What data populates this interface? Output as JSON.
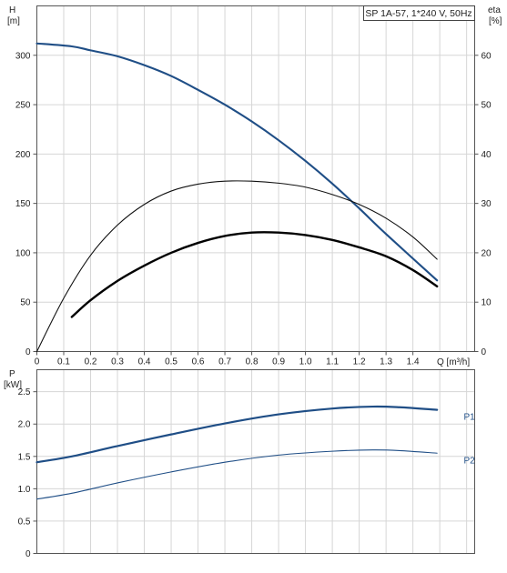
{
  "chart_data": [
    {
      "type": "line",
      "title": "SP 1A-57, 1*240 V, 50Hz",
      "xlabel": "Q [m³/h]",
      "x_tick_labels": [
        "0",
        "0.1",
        "0.2",
        "0.3",
        "0.4",
        "0.5",
        "0.6",
        "0.7",
        "0.8",
        "0.9",
        "1.0",
        "1.1",
        "1.2",
        "1.3",
        "1.4"
      ],
      "xlim": [
        0,
        1.63
      ],
      "ylabel_left": "H",
      "ylabel_left_unit": "[m]",
      "ylabel_right": "eta",
      "ylabel_right_unit": "[%]",
      "y_left_ticks": [
        "0",
        "50",
        "100",
        "150",
        "200",
        "250",
        "300"
      ],
      "y_right_ticks": [
        "0",
        "10",
        "20",
        "30",
        "40",
        "50",
        "60"
      ],
      "ylim_left": [
        0,
        350
      ],
      "ylim_right": [
        0,
        70
      ],
      "grid": true,
      "series": [
        {
          "axis": "left",
          "color": "#1f4e86",
          "x": [
            0,
            0.13,
            0.2,
            0.3,
            0.4,
            0.5,
            0.6,
            0.7,
            0.8,
            0.9,
            1.0,
            1.1,
            1.2,
            1.3,
            1.49
          ],
          "y": [
            312,
            309,
            305,
            299,
            290,
            279,
            265,
            250,
            233,
            214,
            193,
            170,
            145,
            119,
            72
          ]
        },
        {
          "axis": "right",
          "color": "#111111",
          "x": [
            0,
            0.1,
            0.2,
            0.3,
            0.4,
            0.5,
            0.6,
            0.7,
            0.8,
            0.9,
            1.0,
            1.1,
            1.2,
            1.3,
            1.4,
            1.49
          ],
          "y": [
            0,
            10.8,
            19.5,
            25.6,
            29.8,
            32.5,
            33.9,
            34.5,
            34.5,
            34.1,
            33.3,
            31.8,
            29.8,
            27.0,
            23.2,
            18.7
          ]
        },
        {
          "axis": "right",
          "color": "#000000",
          "x": [
            0.13,
            0.2,
            0.3,
            0.4,
            0.5,
            0.6,
            0.7,
            0.8,
            0.9,
            1.0,
            1.1,
            1.2,
            1.3,
            1.4,
            1.49
          ],
          "y": [
            7.0,
            10.4,
            14.3,
            17.4,
            20.0,
            22.0,
            23.4,
            24.1,
            24.1,
            23.6,
            22.6,
            21.1,
            19.3,
            16.5,
            13.2
          ]
        }
      ]
    },
    {
      "type": "line",
      "ylabel": "P",
      "ylabel_unit": "[kW]",
      "y_ticks": [
        "0",
        "0.5",
        "1.0",
        "1.5",
        "2.0",
        "2.5"
      ],
      "ylim": [
        0,
        2.84
      ],
      "xlim": [
        0,
        1.63
      ],
      "grid": true,
      "series": [
        {
          "name": "P1",
          "color": "#1f4e86",
          "x": [
            0,
            0.13,
            0.3,
            0.5,
            0.7,
            0.9,
            1.1,
            1.25,
            1.35,
            1.49
          ],
          "y": [
            1.41,
            1.5,
            1.66,
            1.84,
            2.01,
            2.15,
            2.24,
            2.27,
            2.26,
            2.22
          ]
        },
        {
          "name": "P2",
          "color": "#1f4e86",
          "x": [
            0,
            0.13,
            0.3,
            0.5,
            0.7,
            0.9,
            1.1,
            1.25,
            1.35,
            1.49
          ],
          "y": [
            0.84,
            0.93,
            1.09,
            1.26,
            1.41,
            1.52,
            1.58,
            1.6,
            1.59,
            1.55
          ]
        }
      ]
    }
  ]
}
